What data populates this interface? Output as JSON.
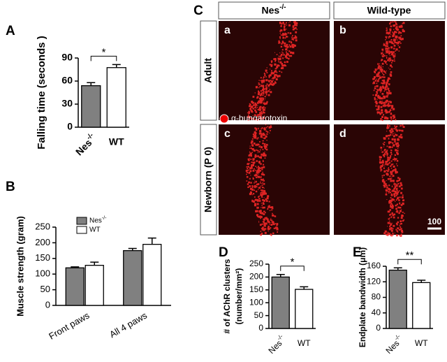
{
  "chart_data": [
    {
      "type": "bar",
      "panel": "A",
      "ylabel": "Falling time (seconds )",
      "categories": [
        "Nes-/-",
        "WT"
      ],
      "values": [
        54,
        77.5
      ],
      "errors": [
        4,
        4
      ],
      "colors": [
        "#808080",
        "#ffffff"
      ],
      "ylim": [
        0,
        90
      ],
      "yticks": [
        0,
        30,
        60,
        90
      ],
      "annotation": "*"
    },
    {
      "type": "bar",
      "panel": "B",
      "ylabel": "Muscle strength (gram)",
      "categories": [
        "Front paws",
        "All 4 paws"
      ],
      "series": [
        {
          "name": "Nes-/-",
          "color": "#808080",
          "values": [
            120,
            175
          ],
          "errors": [
            3,
            7
          ]
        },
        {
          "name": "WT",
          "color": "#ffffff",
          "values": [
            128,
            195
          ],
          "errors": [
            10,
            20
          ]
        }
      ],
      "ylim": [
        0,
        250
      ],
      "yticks": [
        0,
        50,
        100,
        150,
        200,
        250
      ],
      "legend": "top-left"
    },
    {
      "type": "bar",
      "panel": "D",
      "ylabel": [
        "# of AChR clusters",
        "(number/mm²)"
      ],
      "categories": [
        "Nes-/-",
        "WT"
      ],
      "values": [
        200,
        152
      ],
      "errors": [
        10,
        10
      ],
      "colors": [
        "#808080",
        "#ffffff"
      ],
      "ylim": [
        0,
        250
      ],
      "yticks": [
        0,
        50,
        100,
        150,
        200,
        250
      ],
      "annotation": "*"
    },
    {
      "type": "bar",
      "panel": "E",
      "ylabel": "Endplate bandwidth (μm)",
      "categories": [
        "Nes-/-",
        "WT"
      ],
      "values": [
        150,
        118
      ],
      "errors": [
        6,
        6
      ],
      "colors": [
        "#808080",
        "#ffffff"
      ],
      "ylim": [
        0,
        160
      ],
      "yticks": [
        0,
        40,
        80,
        120,
        160
      ],
      "annotation": "**"
    }
  ],
  "image_panel": {
    "panel": "C",
    "columns": [
      "Nes-/-",
      "Wild-type"
    ],
    "rows": [
      "Adult",
      "Newborn (P 0)"
    ],
    "tiles": [
      "a",
      "b",
      "c",
      "d"
    ],
    "stain": "α-bungarotoxin",
    "scale_bar": "100"
  }
}
